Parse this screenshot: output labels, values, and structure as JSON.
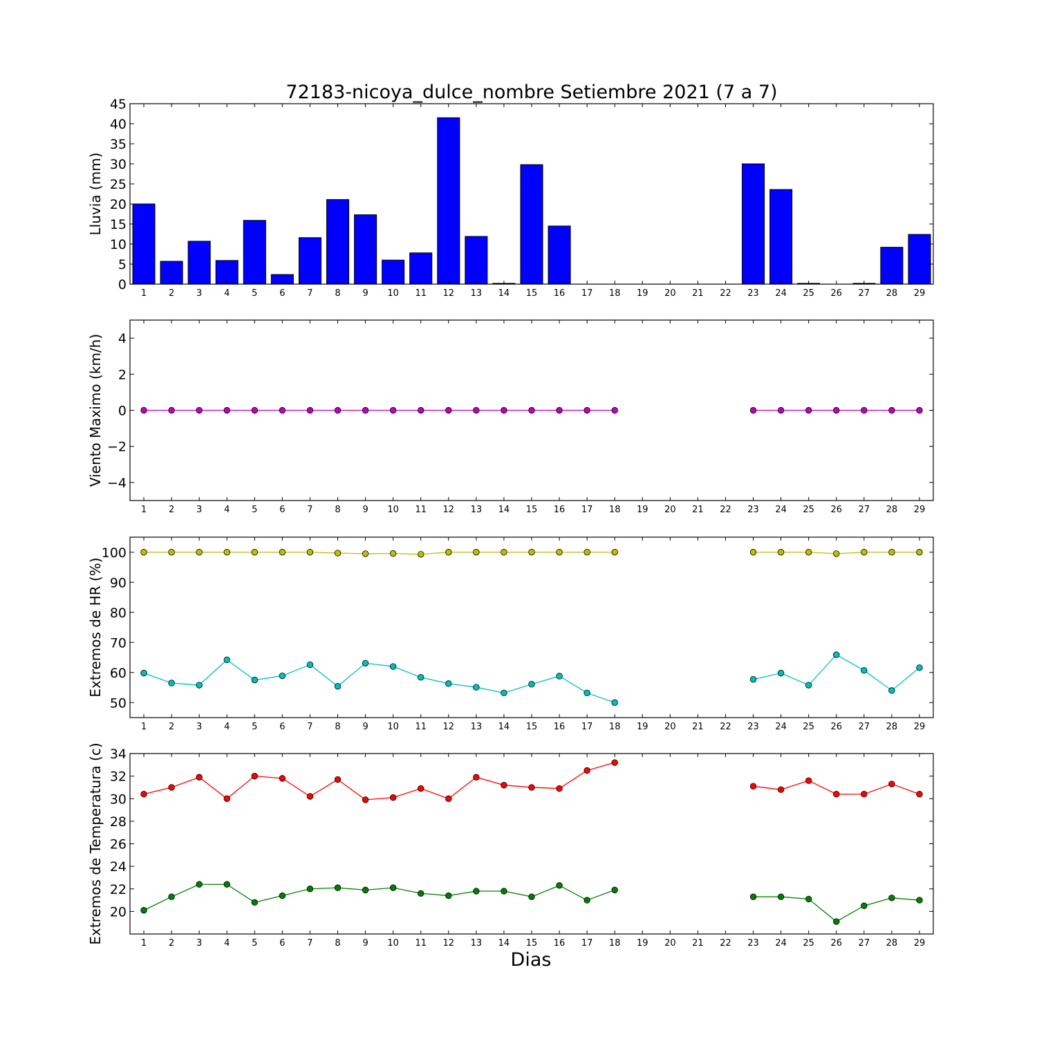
{
  "title": "72183-nicoya_dulce_nombre Setiembre 2021  (7 a 7)",
  "xlabel": "Dias",
  "colors": {
    "rain": "#0000ff",
    "wind": "#bf00bf",
    "hr_max": "#bfbf00",
    "hr_min": "#00bfbf",
    "temp_max": "#ff0000",
    "temp_min": "#008000"
  },
  "chart_data": [
    {
      "type": "bar",
      "ylabel": "Lluvia (mm)",
      "ylim": [
        0,
        45
      ],
      "yticks": [
        0,
        5,
        10,
        15,
        20,
        25,
        30,
        35,
        40,
        45
      ],
      "x": [
        1,
        2,
        3,
        4,
        5,
        6,
        7,
        8,
        9,
        10,
        11,
        12,
        13,
        14,
        15,
        16,
        17,
        18,
        19,
        20,
        21,
        22,
        23,
        24,
        25,
        26,
        27,
        28,
        29
      ],
      "series": [
        {
          "values": [
            20.0,
            5.7,
            10.7,
            5.9,
            15.9,
            2.4,
            11.6,
            21.1,
            17.3,
            6.0,
            7.8,
            41.5,
            11.9,
            0.2,
            29.8,
            14.5,
            0,
            0,
            0,
            0,
            0,
            0,
            30.0,
            23.6,
            0.2,
            0,
            0.2,
            9.2,
            12.4
          ]
        }
      ]
    },
    {
      "type": "line",
      "ylabel": "Viento Maximo (km/h)",
      "ylim": [
        -5,
        5
      ],
      "yticks": [
        -4,
        -2,
        0,
        2,
        4
      ],
      "x": [
        1,
        2,
        3,
        4,
        5,
        6,
        7,
        8,
        9,
        10,
        11,
        12,
        13,
        14,
        15,
        16,
        17,
        18,
        19,
        20,
        21,
        22,
        23,
        24,
        25,
        26,
        27,
        28,
        29
      ],
      "series": [
        {
          "values": [
            0,
            0,
            0,
            0,
            0,
            0,
            0,
            0,
            0,
            0,
            0,
            0,
            0,
            0,
            0,
            0,
            0,
            0,
            null,
            null,
            null,
            null,
            0,
            0,
            0,
            0,
            0,
            0,
            0
          ]
        }
      ]
    },
    {
      "type": "line",
      "ylabel": "Extremos de HR (%)",
      "ylim": [
        45,
        105
      ],
      "yticks": [
        50,
        60,
        70,
        80,
        90,
        100
      ],
      "x": [
        1,
        2,
        3,
        4,
        5,
        6,
        7,
        8,
        9,
        10,
        11,
        12,
        13,
        14,
        15,
        16,
        17,
        18,
        19,
        20,
        21,
        22,
        23,
        24,
        25,
        26,
        27,
        28,
        29
      ],
      "series": [
        {
          "values": [
            100,
            100,
            100,
            100,
            100,
            100,
            100,
            99.7,
            99.5,
            99.6,
            99.3,
            100,
            100,
            100,
            100,
            100,
            100,
            100,
            null,
            null,
            null,
            null,
            100,
            100,
            100,
            99.5,
            100,
            100,
            100
          ]
        },
        {
          "values": [
            59.8,
            56.5,
            55.8,
            64.2,
            57.5,
            58.9,
            62.6,
            55.4,
            63.1,
            62.0,
            58.4,
            56.3,
            55.1,
            53.2,
            56.1,
            58.8,
            53.2,
            50.0,
            null,
            null,
            null,
            null,
            57.7,
            59.8,
            55.8,
            65.9,
            60.7,
            54.0,
            61.6
          ]
        }
      ]
    },
    {
      "type": "line",
      "ylabel": "Extremos de Temperatura (c)",
      "ylim": [
        18,
        34
      ],
      "yticks": [
        20,
        22,
        24,
        26,
        28,
        30,
        32,
        34
      ],
      "x": [
        1,
        2,
        3,
        4,
        5,
        6,
        7,
        8,
        9,
        10,
        11,
        12,
        13,
        14,
        15,
        16,
        17,
        18,
        19,
        20,
        21,
        22,
        23,
        24,
        25,
        26,
        27,
        28,
        29
      ],
      "series": [
        {
          "values": [
            30.4,
            31.0,
            31.9,
            30.0,
            32.0,
            31.8,
            30.2,
            31.7,
            29.9,
            30.1,
            30.9,
            30.0,
            31.9,
            31.2,
            31.0,
            30.9,
            32.5,
            33.2,
            null,
            null,
            null,
            null,
            31.1,
            30.8,
            31.6,
            30.4,
            30.4,
            31.3,
            30.4
          ]
        },
        {
          "values": [
            20.1,
            21.3,
            22.4,
            22.4,
            20.8,
            21.4,
            22.0,
            22.1,
            21.9,
            22.1,
            21.6,
            21.4,
            21.8,
            21.8,
            21.3,
            22.3,
            21.0,
            21.9,
            null,
            null,
            null,
            null,
            21.3,
            21.3,
            21.1,
            19.1,
            20.5,
            21.2,
            21.0
          ]
        }
      ]
    }
  ]
}
